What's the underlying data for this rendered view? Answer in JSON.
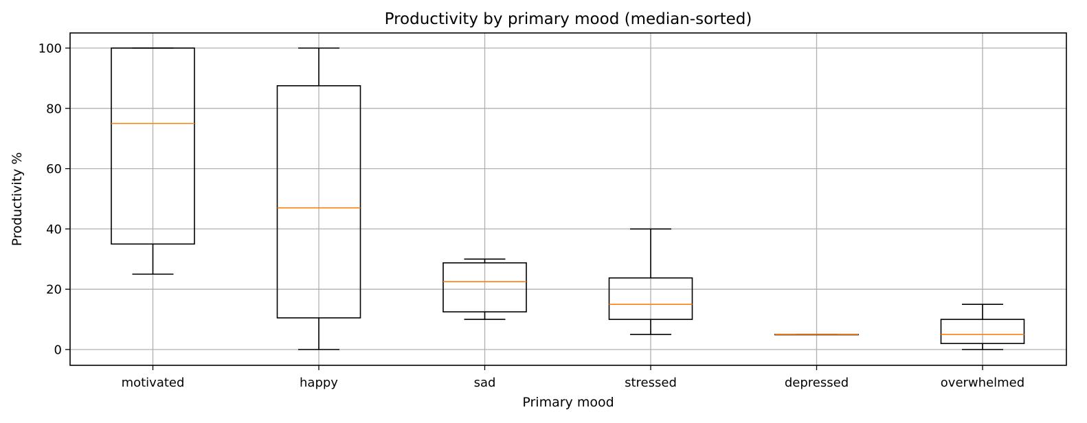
{
  "chart_data": {
    "type": "box",
    "title": "Productivity by primary mood (median-sorted)",
    "xlabel": "Primary mood",
    "ylabel": "Productivity %",
    "ylim": [
      -5,
      105
    ],
    "yticks": [
      0,
      20,
      40,
      60,
      80,
      100
    ],
    "grid": true,
    "categories": [
      "motivated",
      "happy",
      "sad",
      "stressed",
      "depressed",
      "overwhelmed"
    ],
    "boxes": [
      {
        "category": "motivated",
        "whisker_low": 25,
        "q1": 35,
        "median": 75,
        "q3": 100,
        "whisker_high": 100
      },
      {
        "category": "happy",
        "whisker_low": 0,
        "q1": 10.5,
        "median": 47,
        "q3": 87.5,
        "whisker_high": 100
      },
      {
        "category": "sad",
        "whisker_low": 10,
        "q1": 12.5,
        "median": 22.5,
        "q3": 28.75,
        "whisker_high": 30
      },
      {
        "category": "stressed",
        "whisker_low": 5,
        "q1": 10,
        "median": 15,
        "q3": 23.75,
        "whisker_high": 40
      },
      {
        "category": "depressed",
        "whisker_low": 5,
        "q1": 5,
        "median": 5,
        "q3": 5,
        "whisker_high": 5
      },
      {
        "category": "overwhelmed",
        "whisker_low": 0,
        "q1": 2,
        "median": 5,
        "q3": 10,
        "whisker_high": 15
      }
    ],
    "colors": {
      "box": "#000000",
      "median": "#ff7f0e",
      "grid": "#b0b0b0"
    }
  }
}
